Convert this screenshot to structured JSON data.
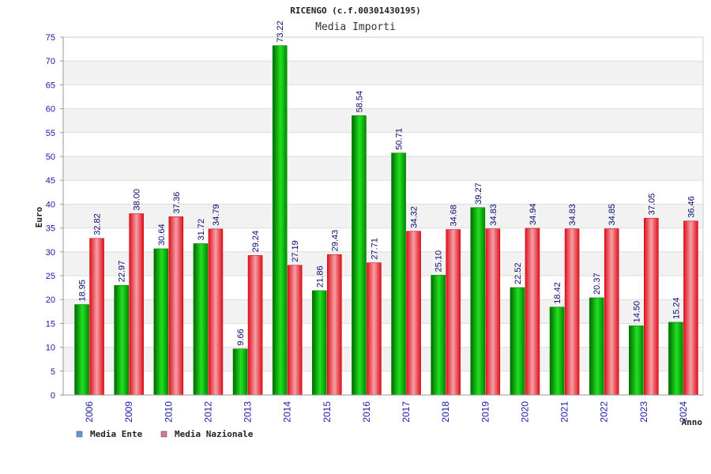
{
  "chart_data": {
    "type": "bar",
    "title": "RICENGO (c.f.00301430195)",
    "subtitle": "Media Importi",
    "ylabel": "Euro",
    "xlabel": "Anno",
    "ylim": [
      0,
      75
    ],
    "yticks": [
      0,
      5,
      10,
      15,
      20,
      25,
      30,
      35,
      40,
      45,
      50,
      55,
      60,
      65,
      70,
      75
    ],
    "categories": [
      "2006",
      "2009",
      "2010",
      "2012",
      "2013",
      "2014",
      "2015",
      "2016",
      "2017",
      "2018",
      "2019",
      "2020",
      "2021",
      "2022",
      "2023",
      "2024"
    ],
    "series": [
      {
        "name": "Media Ente",
        "color": "#00b000",
        "legend_color": "#5b9bd5",
        "values": [
          18.95,
          22.97,
          30.64,
          31.72,
          9.66,
          73.22,
          21.86,
          58.54,
          50.71,
          25.1,
          39.27,
          22.52,
          18.42,
          20.37,
          14.5,
          15.24
        ],
        "labels": [
          "18.95",
          "22.97",
          "30.64",
          "31.72",
          "9.66",
          "73.22",
          "21.86",
          "58.54",
          "50.71",
          "25.10",
          "39.27",
          "22.52",
          "18.42",
          "20.37",
          "14.50",
          "15.24"
        ]
      },
      {
        "name": "Media Nazionale",
        "color": "#e8202a",
        "legend_color": "#d9739a",
        "values": [
          32.82,
          38.0,
          37.36,
          34.79,
          29.24,
          27.19,
          29.43,
          27.71,
          34.32,
          34.68,
          34.83,
          34.94,
          34.83,
          34.85,
          37.05,
          36.46
        ],
        "labels": [
          "32.82",
          "38.00",
          "37.36",
          "34.79",
          "29.24",
          "27.19",
          "29.43",
          "27.71",
          "34.32",
          "34.68",
          "34.83",
          "34.94",
          "34.83",
          "34.85",
          "37.05",
          "36.46"
        ]
      }
    ],
    "grid": true,
    "legend_position": "bottom-left"
  }
}
